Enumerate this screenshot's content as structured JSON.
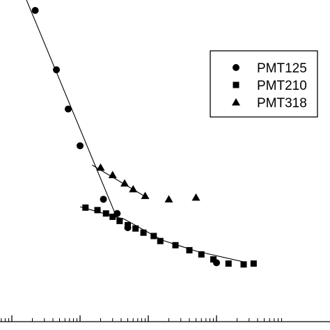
{
  "chart_data": {
    "type": "scatter",
    "x_scale": "log",
    "grid": false,
    "legend_position": "top-right",
    "series": [
      {
        "name": "PMT125",
        "marker": "circle",
        "points": [
          [
            0.022,
            2.8
          ],
          [
            0.045,
            2.09
          ],
          [
            0.067,
            1.62
          ],
          [
            0.1,
            1.18
          ],
          [
            0.22,
            0.54
          ],
          [
            0.35,
            0.37
          ],
          [
            0.5,
            0.2
          ],
          [
            10,
            -0.22
          ]
        ],
        "fit": [
          [
            0.015,
            3.0
          ],
          [
            0.35,
            0.31
          ]
        ]
      },
      {
        "name": "PMT210",
        "marker": "square",
        "points": [
          [
            0.12,
            0.44
          ],
          [
            0.18,
            0.41
          ],
          [
            0.24,
            0.37
          ],
          [
            0.3,
            0.33
          ],
          [
            0.38,
            0.28
          ],
          [
            0.5,
            0.23
          ],
          [
            0.65,
            0.19
          ],
          [
            0.85,
            0.14
          ],
          [
            1.2,
            0.1
          ],
          [
            1.5,
            0.04
          ],
          [
            2.5,
            -0.01
          ],
          [
            4,
            -0.07
          ],
          [
            6,
            -0.12
          ],
          [
            9,
            -0.18
          ],
          [
            15,
            -0.23
          ],
          [
            25,
            -0.24
          ],
          [
            35,
            -0.23
          ]
        ],
        "fit": [
          [
            0.1,
            0.45
          ],
          [
            0.45,
            0.3
          ],
          [
            1.6,
            0.05
          ],
          [
            5,
            -0.08
          ],
          [
            25,
            -0.21
          ]
        ]
      },
      {
        "name": "PMT318",
        "marker": "triangle",
        "points": [
          [
            0.2,
            0.92
          ],
          [
            0.3,
            0.83
          ],
          [
            0.45,
            0.73
          ],
          [
            0.6,
            0.66
          ],
          [
            0.9,
            0.58
          ],
          [
            2,
            0.54
          ],
          [
            5,
            0.56
          ]
        ],
        "fit": [
          [
            0.15,
            0.95
          ],
          [
            1.0,
            0.55
          ]
        ]
      }
    ]
  }
}
